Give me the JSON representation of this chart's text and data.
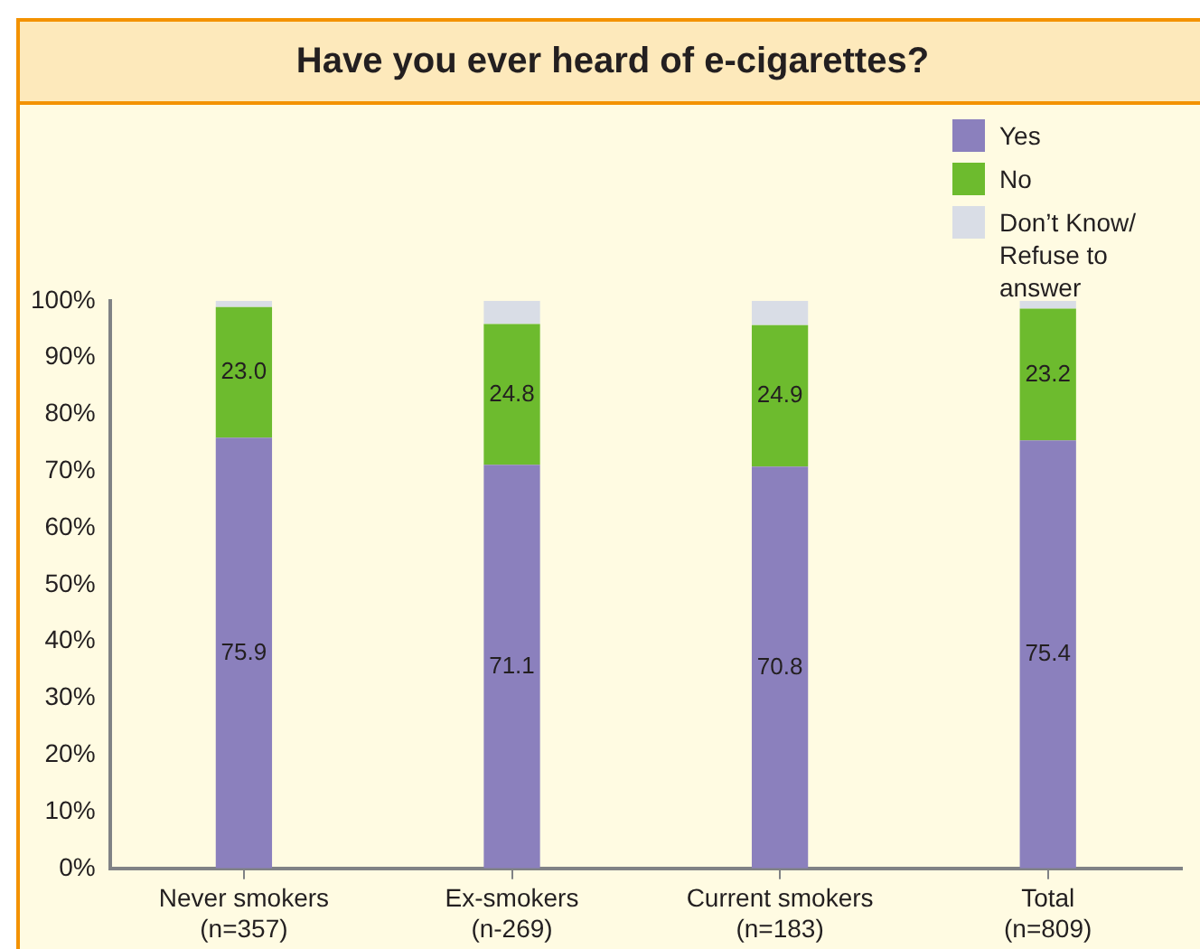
{
  "chart_data": {
    "type": "bar",
    "title": "Have you ever heard of e-cigarettes?",
    "categories": [
      "Never smokers\n(n=357)",
      "Ex-smokers\n(n-269)",
      "Current smokers\n(n=183)",
      "Total\n(n=809)"
    ],
    "stacked": true,
    "series": [
      {
        "name": "Yes",
        "color": "#8b80bd",
        "values": [
          75.9,
          71.1,
          70.8,
          75.4
        ],
        "value_labels": [
          "75.9",
          "71.1",
          "70.8",
          "75.4"
        ]
      },
      {
        "name": "No",
        "color": "#6dbb2e",
        "values": [
          23.0,
          24.8,
          24.9,
          23.2
        ],
        "value_labels": [
          "23.0",
          "24.8",
          "24.9",
          "23.2"
        ]
      },
      {
        "name": "Don’t Know/ Refuse to answer",
        "color": "#d9dde6",
        "values": [
          1.1,
          4.1,
          4.3,
          1.4
        ]
      }
    ],
    "ylim": [
      0,
      100
    ],
    "yticks": [
      {
        "value": 0,
        "label": "0%"
      },
      {
        "value": 10,
        "label": "10%"
      },
      {
        "value": 20,
        "label": "20%"
      },
      {
        "value": 30,
        "label": "30%"
      },
      {
        "value": 40,
        "label": "40%"
      },
      {
        "value": 50,
        "label": "50%"
      },
      {
        "value": 60,
        "label": "60%"
      },
      {
        "value": 70,
        "label": "70%"
      },
      {
        "value": 80,
        "label": "80%"
      },
      {
        "value": 90,
        "label": "90%"
      },
      {
        "value": 100,
        "label": "100%"
      }
    ],
    "grid": false,
    "legend": "top right"
  }
}
